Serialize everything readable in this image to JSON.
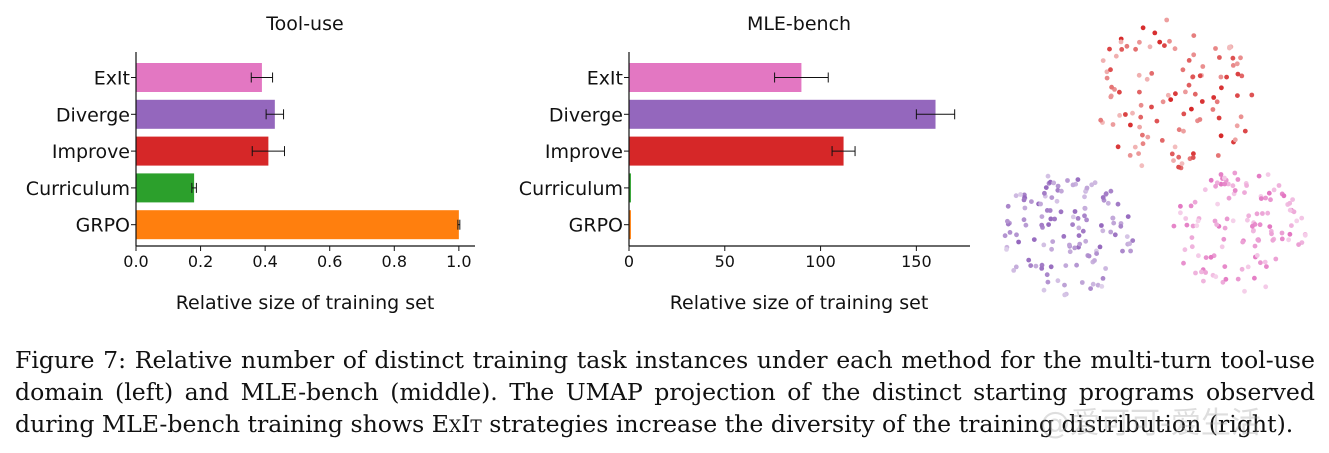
{
  "chart_data": [
    {
      "type": "bar",
      "orientation": "horizontal",
      "title": "Tool-use",
      "xlabel": "Relative size of training set",
      "categories": [
        "ExIt",
        "Diverge",
        "Improve",
        "Curriculum",
        "GRPO"
      ],
      "values": [
        0.39,
        0.43,
        0.41,
        0.18,
        1.0
      ],
      "errors": [
        0.033,
        0.027,
        0.05,
        0.007,
        0.003
      ],
      "colors": [
        "#e377c2",
        "#9467bd",
        "#d62728",
        "#2ca02c",
        "#ff7f0e"
      ],
      "xlim": [
        0,
        1.05
      ],
      "xticks": [
        "0.0",
        "0.2",
        "0.4",
        "0.6",
        "0.8",
        "1.0"
      ],
      "xtick_values": [
        0,
        0.2,
        0.4,
        0.6,
        0.8,
        1.0
      ]
    },
    {
      "type": "bar",
      "orientation": "horizontal",
      "title": "MLE-bench",
      "xlabel": "Relative size of training set",
      "categories": [
        "ExIt",
        "Diverge",
        "Improve",
        "Curriculum",
        "GRPO"
      ],
      "values": [
        90,
        160,
        112,
        1,
        1
      ],
      "errors": [
        14,
        10,
        6,
        0,
        0
      ],
      "colors": [
        "#e377c2",
        "#9467bd",
        "#d62728",
        "#2ca02c",
        "#ff7f0e"
      ],
      "xlim": [
        0,
        178
      ],
      "xticks": [
        "0",
        "50",
        "100",
        "150"
      ],
      "xtick_values": [
        0,
        50,
        100,
        150
      ]
    },
    {
      "type": "scatter",
      "title": "",
      "clusters": [
        {
          "color": "#d62728",
          "center": [
            0.55,
            0.25
          ],
          "radius": 0.27,
          "count": 110
        },
        {
          "color": "#9467bd",
          "center": [
            0.2,
            0.72
          ],
          "radius": 0.22,
          "count": 130
        },
        {
          "color": "#e377c2",
          "center": [
            0.77,
            0.7
          ],
          "radius": 0.22,
          "count": 120
        }
      ]
    }
  ],
  "caption": {
    "line1": "Figure 7: Relative number of distinct training task instances under each method for the multi-turn tool-use",
    "line2": "domain (left) and MLE-bench (middle). The UMAP projection of the distinct starting programs observed",
    "line3_pre": "during MLE-bench training shows ",
    "line3_sc": "ExIt",
    "line3_post": " strategies increase the diversity of the training distribution (right)."
  },
  "watermark": "@爱可可-爱生活"
}
